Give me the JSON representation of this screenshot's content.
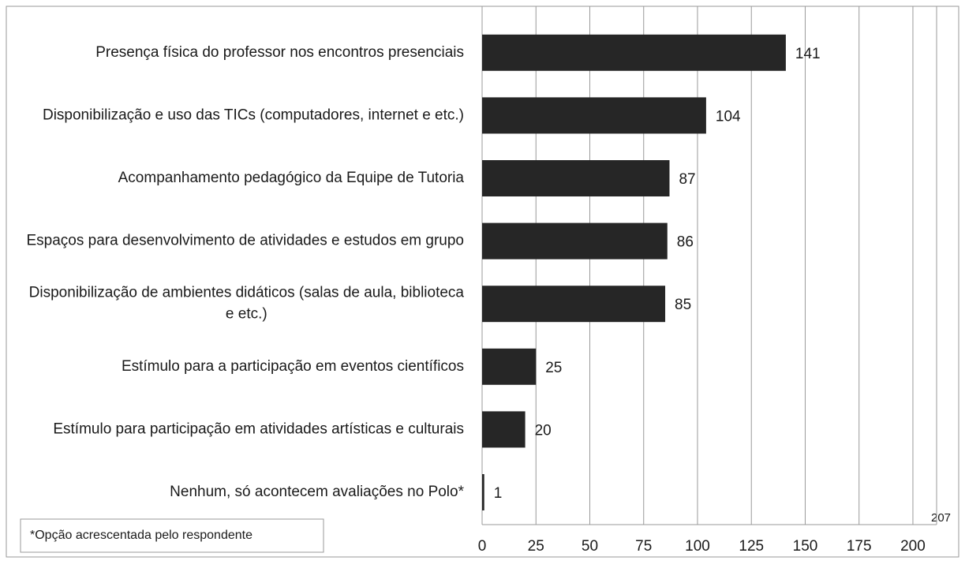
{
  "chart_data": {
    "type": "bar",
    "orientation": "horizontal",
    "categories": [
      "Presença física do professor nos encontros presenciais",
      "Disponibilização e uso das TICs (computadores, internet e etc.)",
      "Acompanhamento pedagógico da Equipe de Tutoria",
      "Espaços para desenvolvimento de atividades e estudos em grupo",
      "Disponibilização de ambientes didáticos (salas de aula, biblioteca e etc.)",
      "Estímulo para a participação em eventos científicos",
      "Estímulo para participação em atividades artísticas e culturais",
      "Nenhum, só acontecem avaliações no Polo*"
    ],
    "values": [
      141,
      104,
      87,
      86,
      85,
      25,
      20,
      1
    ],
    "color": "#262626",
    "xlim": [
      0,
      211
    ],
    "xticks": [
      0,
      25,
      50,
      75,
      100,
      125,
      150,
      175,
      200
    ],
    "grid": true,
    "annotation": "207",
    "footnote": "*Opção acrescentada pelo respondente"
  }
}
